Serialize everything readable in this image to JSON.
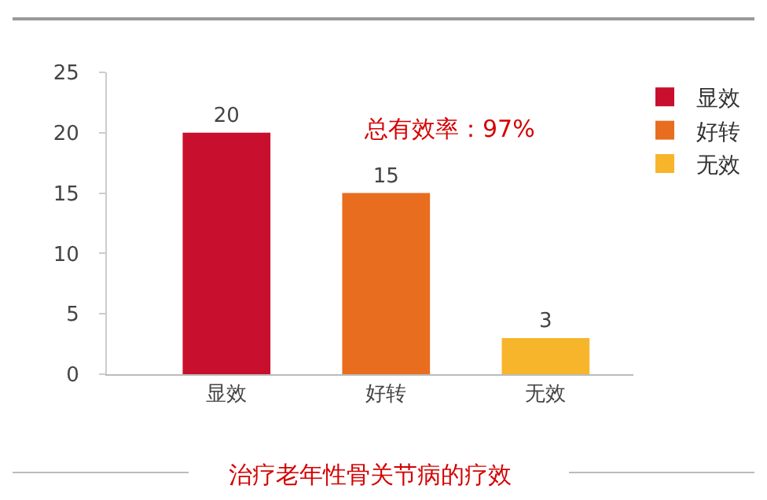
{
  "chart_data": {
    "type": "bar",
    "title": "治疗老年性骨关节病的疗效",
    "categories": [
      "显效",
      "好转",
      "无效"
    ],
    "series": [
      {
        "name": "显效",
        "color": "#c8102e",
        "values": [
          20,
          null,
          null
        ]
      },
      {
        "name": "好转",
        "color": "#e86d1f",
        "values": [
          null,
          15,
          null
        ]
      },
      {
        "name": "无效",
        "color": "#f7b52c",
        "values": [
          null,
          null,
          3
        ]
      }
    ],
    "ylim": [
      0,
      25
    ],
    "yticks": [
      0,
      5,
      10,
      15,
      20,
      25
    ],
    "data_labels": true,
    "grid": false,
    "legend": "top right",
    "annotations": [
      "总有效率：97%"
    ]
  }
}
